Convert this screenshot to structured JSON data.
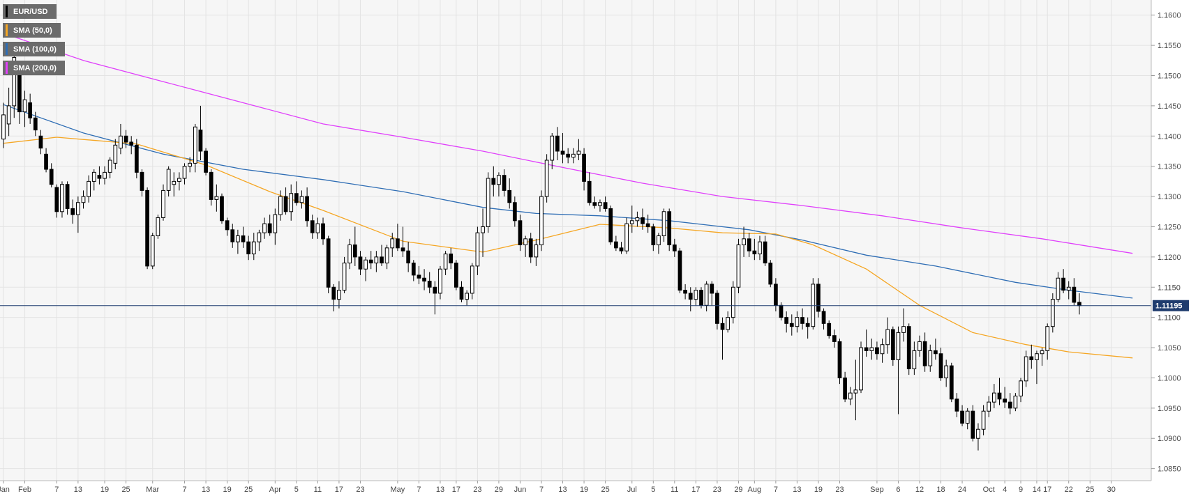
{
  "chart_data": {
    "type": "candlestick",
    "symbol": "EUR/USD",
    "indicators": [
      {
        "name": "EUR/USD",
        "color": "#000000"
      },
      {
        "name": "SMA (50,0)",
        "color": "#f5a623"
      },
      {
        "name": "SMA (100,0)",
        "color": "#2e6db4"
      },
      {
        "name": "SMA (200,0)",
        "color": "#e040fb"
      }
    ],
    "ylim": [
      1.083,
      1.1625
    ],
    "y_ticks": [
      "1.1600",
      "1.1550",
      "1.1500",
      "1.1450",
      "1.1400",
      "1.1350",
      "1.1300",
      "1.1250",
      "1.1200",
      "1.1150",
      "1.1100",
      "1.1050",
      "1.1000",
      "1.0950",
      "1.0900",
      "1.0850"
    ],
    "x_ticks": [
      "Jan",
      "Feb",
      "7",
      "13",
      "19",
      "25",
      "Mar",
      "7",
      "13",
      "19",
      "25",
      "Apr",
      "5",
      "11",
      "17",
      "23",
      "May",
      "7",
      "13",
      "17",
      "23",
      "29",
      "Jun",
      "7",
      "13",
      "19",
      "25",
      "Jul",
      "5",
      "11",
      "17",
      "23",
      "29",
      "Aug",
      "7",
      "13",
      "19",
      "23",
      "Sep",
      "6",
      "12",
      "18",
      "24",
      "Oct",
      "4",
      "9",
      "14",
      "17",
      "22",
      "25",
      "30"
    ],
    "last_price": "1.11195",
    "last_price_value": 1.11195,
    "ohlc": [
      [
        1.1395,
        1.1455,
        1.138,
        1.1435
      ],
      [
        1.142,
        1.148,
        1.14,
        1.145
      ],
      [
        1.145,
        1.155,
        1.143,
        1.153
      ],
      [
        1.15,
        1.151,
        1.142,
        1.144
      ],
      [
        1.144,
        1.1475,
        1.1415,
        1.146
      ],
      [
        1.1455,
        1.147,
        1.142,
        1.143
      ],
      [
        1.143,
        1.144,
        1.14,
        1.141
      ],
      [
        1.14,
        1.141,
        1.137,
        1.138
      ],
      [
        1.137,
        1.138,
        1.134,
        1.1345
      ],
      [
        1.1345,
        1.1355,
        1.1315,
        1.132
      ],
      [
        1.1315,
        1.132,
        1.1265,
        1.1275
      ],
      [
        1.1275,
        1.1325,
        1.1265,
        1.132
      ],
      [
        1.132,
        1.1325,
        1.127,
        1.128
      ],
      [
        1.128,
        1.1295,
        1.1255,
        1.127
      ],
      [
        1.127,
        1.13,
        1.124,
        1.129
      ],
      [
        1.129,
        1.131,
        1.128,
        1.13
      ],
      [
        1.13,
        1.1335,
        1.129,
        1.1325
      ],
      [
        1.1325,
        1.1345,
        1.131,
        1.134
      ],
      [
        1.1335,
        1.135,
        1.132,
        1.133
      ],
      [
        1.133,
        1.135,
        1.132,
        1.134
      ],
      [
        1.134,
        1.1365,
        1.133,
        1.136
      ],
      [
        1.1355,
        1.1395,
        1.1345,
        1.1385
      ],
      [
        1.138,
        1.142,
        1.137,
        1.14
      ],
      [
        1.14,
        1.141,
        1.138,
        1.139
      ],
      [
        1.139,
        1.14,
        1.137,
        1.1385
      ],
      [
        1.1385,
        1.1395,
        1.133,
        1.134
      ],
      [
        1.134,
        1.1345,
        1.13,
        1.131
      ],
      [
        1.131,
        1.1315,
        1.118,
        1.1185
      ],
      [
        1.1185,
        1.124,
        1.118,
        1.1235
      ],
      [
        1.1235,
        1.127,
        1.123,
        1.1265
      ],
      [
        1.1265,
        1.132,
        1.126,
        1.131
      ],
      [
        1.131,
        1.135,
        1.13,
        1.1345
      ],
      [
        1.132,
        1.134,
        1.13,
        1.1325
      ],
      [
        1.1325,
        1.134,
        1.131,
        1.133
      ],
      [
        1.133,
        1.1355,
        1.132,
        1.135
      ],
      [
        1.135,
        1.1365,
        1.134,
        1.1355
      ],
      [
        1.1355,
        1.142,
        1.134,
        1.1415
      ],
      [
        1.141,
        1.145,
        1.136,
        1.1375
      ],
      [
        1.1375,
        1.138,
        1.1335,
        1.134
      ],
      [
        1.134,
        1.1345,
        1.1285,
        1.1295
      ],
      [
        1.1295,
        1.132,
        1.1275,
        1.13
      ],
      [
        1.13,
        1.1305,
        1.1255,
        1.126
      ],
      [
        1.126,
        1.1265,
        1.1235,
        1.1245
      ],
      [
        1.1245,
        1.1255,
        1.1215,
        1.1225
      ],
      [
        1.1225,
        1.1245,
        1.1205,
        1.1235
      ],
      [
        1.1235,
        1.125,
        1.1215,
        1.1225
      ],
      [
        1.1225,
        1.1235,
        1.1195,
        1.1205
      ],
      [
        1.1205,
        1.124,
        1.1195,
        1.1225
      ],
      [
        1.1225,
        1.1245,
        1.121,
        1.124
      ],
      [
        1.124,
        1.1265,
        1.123,
        1.1255
      ],
      [
        1.1255,
        1.127,
        1.1235,
        1.124
      ],
      [
        1.124,
        1.128,
        1.122,
        1.127
      ],
      [
        1.127,
        1.131,
        1.126,
        1.13
      ],
      [
        1.13,
        1.1315,
        1.127,
        1.1275
      ],
      [
        1.1275,
        1.132,
        1.126,
        1.1305
      ],
      [
        1.1305,
        1.1325,
        1.1285,
        1.129
      ],
      [
        1.129,
        1.131,
        1.128,
        1.13
      ],
      [
        1.13,
        1.1315,
        1.125,
        1.126
      ],
      [
        1.126,
        1.127,
        1.123,
        1.124
      ],
      [
        1.124,
        1.1265,
        1.123,
        1.1255
      ],
      [
        1.1255,
        1.1265,
        1.122,
        1.123
      ],
      [
        1.123,
        1.1235,
        1.114,
        1.115
      ],
      [
        1.115,
        1.1155,
        1.111,
        1.113
      ],
      [
        1.113,
        1.116,
        1.1115,
        1.1145
      ],
      [
        1.1145,
        1.12,
        1.114,
        1.119
      ],
      [
        1.119,
        1.123,
        1.118,
        1.122
      ],
      [
        1.122,
        1.125,
        1.1185,
        1.12
      ],
      [
        1.12,
        1.121,
        1.117,
        1.118
      ],
      [
        1.118,
        1.12,
        1.116,
        1.1195
      ],
      [
        1.1195,
        1.121,
        1.118,
        1.119
      ],
      [
        1.119,
        1.121,
        1.1175,
        1.12
      ],
      [
        1.12,
        1.122,
        1.1185,
        1.119
      ],
      [
        1.119,
        1.122,
        1.118,
        1.1215
      ],
      [
        1.1215,
        1.124,
        1.12,
        1.123
      ],
      [
        1.123,
        1.1255,
        1.121,
        1.1215
      ],
      [
        1.1215,
        1.125,
        1.12,
        1.121
      ],
      [
        1.121,
        1.1225,
        1.1175,
        1.119
      ],
      [
        1.119,
        1.1195,
        1.116,
        1.117
      ],
      [
        1.117,
        1.1185,
        1.1155,
        1.1165
      ],
      [
        1.1165,
        1.118,
        1.1145,
        1.116
      ],
      [
        1.116,
        1.1175,
        1.114,
        1.115
      ],
      [
        1.115,
        1.116,
        1.1105,
        1.114
      ],
      [
        1.114,
        1.1185,
        1.113,
        1.118
      ],
      [
        1.118,
        1.121,
        1.117,
        1.1205
      ],
      [
        1.1205,
        1.1215,
        1.118,
        1.119
      ],
      [
        1.119,
        1.1195,
        1.1145,
        1.115
      ],
      [
        1.115,
        1.116,
        1.1125,
        1.113
      ],
      [
        1.113,
        1.1145,
        1.112,
        1.114
      ],
      [
        1.114,
        1.119,
        1.113,
        1.1185
      ],
      [
        1.1185,
        1.125,
        1.117,
        1.124
      ],
      [
        1.124,
        1.128,
        1.12,
        1.125
      ],
      [
        1.125,
        1.134,
        1.124,
        1.133
      ],
      [
        1.133,
        1.135,
        1.13,
        1.132
      ],
      [
        1.132,
        1.134,
        1.13,
        1.1335
      ],
      [
        1.1335,
        1.1345,
        1.13,
        1.131
      ],
      [
        1.131,
        1.133,
        1.128,
        1.129
      ],
      [
        1.129,
        1.13,
        1.125,
        1.126
      ],
      [
        1.126,
        1.127,
        1.121,
        1.122
      ],
      [
        1.122,
        1.1235,
        1.12,
        1.123
      ],
      [
        1.123,
        1.124,
        1.119,
        1.12
      ],
      [
        1.12,
        1.123,
        1.1185,
        1.122
      ],
      [
        1.122,
        1.131,
        1.121,
        1.13
      ],
      [
        1.13,
        1.137,
        1.129,
        1.136
      ],
      [
        1.136,
        1.1405,
        1.1345,
        1.14
      ],
      [
        1.14,
        1.1415,
        1.136,
        1.1375
      ],
      [
        1.1375,
        1.1405,
        1.1355,
        1.137
      ],
      [
        1.137,
        1.138,
        1.1355,
        1.1365
      ],
      [
        1.1365,
        1.138,
        1.1355,
        1.137
      ],
      [
        1.137,
        1.1395,
        1.136,
        1.1375
      ],
      [
        1.137,
        1.138,
        1.131,
        1.1325
      ],
      [
        1.1325,
        1.134,
        1.1285,
        1.129
      ],
      [
        1.129,
        1.13,
        1.128,
        1.1285
      ],
      [
        1.1285,
        1.1295,
        1.1275,
        1.129
      ],
      [
        1.129,
        1.13,
        1.1275,
        1.128
      ],
      [
        1.128,
        1.1285,
        1.122,
        1.1225
      ],
      [
        1.1225,
        1.1235,
        1.121,
        1.1215
      ],
      [
        1.1215,
        1.1225,
        1.1205,
        1.121
      ],
      [
        1.121,
        1.1265,
        1.1205,
        1.1255
      ],
      [
        1.1255,
        1.1285,
        1.124,
        1.126
      ],
      [
        1.126,
        1.1275,
        1.125,
        1.1265
      ],
      [
        1.1265,
        1.128,
        1.1245,
        1.1255
      ],
      [
        1.1255,
        1.127,
        1.124,
        1.125
      ],
      [
        1.125,
        1.1255,
        1.121,
        1.122
      ],
      [
        1.122,
        1.124,
        1.1205,
        1.1235
      ],
      [
        1.1235,
        1.128,
        1.1225,
        1.1275
      ],
      [
        1.1275,
        1.128,
        1.121,
        1.122
      ],
      [
        1.122,
        1.123,
        1.12,
        1.121
      ],
      [
        1.121,
        1.1215,
        1.114,
        1.1145
      ],
      [
        1.1145,
        1.1155,
        1.113,
        1.114
      ],
      [
        1.114,
        1.115,
        1.111,
        1.113
      ],
      [
        1.113,
        1.115,
        1.112,
        1.1145
      ],
      [
        1.1145,
        1.115,
        1.1115,
        1.112
      ],
      [
        1.112,
        1.116,
        1.111,
        1.1155
      ],
      [
        1.1155,
        1.116,
        1.112,
        1.114
      ],
      [
        1.114,
        1.1145,
        1.108,
        1.109
      ],
      [
        1.109,
        1.11,
        1.103,
        1.108
      ],
      [
        1.108,
        1.111,
        1.1075,
        1.11
      ],
      [
        1.11,
        1.116,
        1.109,
        1.115
      ],
      [
        1.115,
        1.123,
        1.114,
        1.122
      ],
      [
        1.122,
        1.125,
        1.12,
        1.123
      ],
      [
        1.123,
        1.124,
        1.12,
        1.121
      ],
      [
        1.121,
        1.123,
        1.1195,
        1.1205
      ],
      [
        1.1205,
        1.1235,
        1.1195,
        1.1225
      ],
      [
        1.1225,
        1.1235,
        1.1185,
        1.119
      ],
      [
        1.119,
        1.1195,
        1.115,
        1.1155
      ],
      [
        1.1155,
        1.1165,
        1.111,
        1.112
      ],
      [
        1.112,
        1.1125,
        1.1095,
        1.11
      ],
      [
        1.11,
        1.111,
        1.1075,
        1.109
      ],
      [
        1.109,
        1.1105,
        1.107,
        1.1085
      ],
      [
        1.1085,
        1.111,
        1.1075,
        1.11
      ],
      [
        1.11,
        1.1115,
        1.108,
        1.109
      ],
      [
        1.109,
        1.11,
        1.1065,
        1.1085
      ],
      [
        1.1085,
        1.1165,
        1.108,
        1.1155
      ],
      [
        1.1155,
        1.1165,
        1.11,
        1.111
      ],
      [
        1.111,
        1.1115,
        1.108,
        1.109
      ],
      [
        1.109,
        1.1095,
        1.1065,
        1.107
      ],
      [
        1.107,
        1.108,
        1.105,
        1.106
      ],
      [
        1.106,
        1.1065,
        1.099,
        1.1
      ],
      [
        1.1,
        1.101,
        1.096,
        1.0965
      ],
      [
        1.0965,
        1.0985,
        1.0955,
        1.0975
      ],
      [
        1.0975,
        1.103,
        1.093,
        1.098
      ],
      [
        1.098,
        1.106,
        1.0975,
        1.105
      ],
      [
        1.105,
        1.108,
        1.1035,
        1.1045
      ],
      [
        1.1045,
        1.1065,
        1.103,
        1.105
      ],
      [
        1.105,
        1.106,
        1.103,
        1.104
      ],
      [
        1.104,
        1.1065,
        1.1025,
        1.1055
      ],
      [
        1.1055,
        1.11,
        1.104,
        1.108
      ],
      [
        1.108,
        1.1085,
        1.102,
        1.103
      ],
      [
        1.103,
        1.1085,
        1.094,
        1.1075
      ],
      [
        1.1075,
        1.1115,
        1.106,
        1.1085
      ],
      [
        1.1085,
        1.109,
        1.1005,
        1.1015
      ],
      [
        1.1015,
        1.106,
        1.1005,
        1.1045
      ],
      [
        1.1045,
        1.107,
        1.1035,
        1.106
      ],
      [
        1.106,
        1.1075,
        1.101,
        1.102
      ],
      [
        1.102,
        1.1055,
        1.101,
        1.1045
      ],
      [
        1.1045,
        1.1065,
        1.103,
        1.104
      ],
      [
        1.104,
        1.105,
        1.0995,
        1.1
      ],
      [
        1.1,
        1.103,
        1.0985,
        1.102
      ],
      [
        1.102,
        1.1025,
        1.096,
        1.0965
      ],
      [
        1.0965,
        1.0975,
        1.0935,
        1.0945
      ],
      [
        1.0945,
        1.0955,
        1.092,
        1.0925
      ],
      [
        1.0925,
        1.095,
        1.0915,
        1.0945
      ],
      [
        1.0945,
        1.0955,
        1.0895,
        1.09
      ],
      [
        1.09,
        1.0925,
        1.088,
        1.0915
      ],
      [
        1.0915,
        1.0955,
        1.0905,
        1.0945
      ],
      [
        1.0945,
        1.097,
        1.0935,
        1.096
      ],
      [
        1.096,
        1.099,
        1.095,
        1.0975
      ],
      [
        1.0975,
        1.1,
        1.0955,
        1.0965
      ],
      [
        1.0965,
        1.0985,
        1.095,
        1.096
      ],
      [
        1.096,
        1.0975,
        1.094,
        1.095
      ],
      [
        1.095,
        1.0975,
        1.0945,
        1.097
      ],
      [
        1.097,
        1.1,
        1.096,
        1.0995
      ],
      [
        1.0995,
        1.1045,
        1.0985,
        1.1035
      ],
      [
        1.1035,
        1.1055,
        1.1015,
        1.103
      ],
      [
        1.103,
        1.1045,
        1.099,
        1.104
      ],
      [
        1.104,
        1.105,
        1.102,
        1.1045
      ],
      [
        1.1045,
        1.109,
        1.103,
        1.1085
      ],
      [
        1.1085,
        1.114,
        1.1075,
        1.113
      ],
      [
        1.113,
        1.1175,
        1.1125,
        1.1165
      ],
      [
        1.1165,
        1.118,
        1.114,
        1.1145
      ],
      [
        1.1145,
        1.116,
        1.113,
        1.115
      ],
      [
        1.115,
        1.1165,
        1.112,
        1.1125
      ],
      [
        1.1125,
        1.114,
        1.1105,
        1.11195
      ]
    ],
    "sma50": [
      [
        0,
        1.1388
      ],
      [
        10,
        1.1398
      ],
      [
        25,
        1.1387
      ],
      [
        38,
        1.1352
      ],
      [
        50,
        1.1308
      ],
      [
        60,
        1.1277
      ],
      [
        75,
        1.1226
      ],
      [
        90,
        1.1208
      ],
      [
        100,
        1.1228
      ],
      [
        112,
        1.1254
      ],
      [
        125,
        1.1248
      ],
      [
        135,
        1.124
      ],
      [
        145,
        1.1238
      ],
      [
        152,
        1.122
      ],
      [
        162,
        1.118
      ],
      [
        172,
        1.112
      ],
      [
        182,
        1.1075
      ],
      [
        192,
        1.1055
      ],
      [
        200,
        1.1043
      ],
      [
        212,
        1.1033
      ]
    ],
    "sma100": [
      [
        0,
        1.1452
      ],
      [
        15,
        1.1405
      ],
      [
        30,
        1.137
      ],
      [
        45,
        1.1345
      ],
      [
        60,
        1.1328
      ],
      [
        75,
        1.1308
      ],
      [
        90,
        1.1282
      ],
      [
        100,
        1.1272
      ],
      [
        112,
        1.1268
      ],
      [
        125,
        1.126
      ],
      [
        140,
        1.1245
      ],
      [
        150,
        1.1228
      ],
      [
        162,
        1.1203
      ],
      [
        175,
        1.1185
      ],
      [
        190,
        1.1158
      ],
      [
        200,
        1.1145
      ],
      [
        212,
        1.1132
      ]
    ],
    "sma200": [
      [
        0,
        1.157
      ],
      [
        15,
        1.1525
      ],
      [
        30,
        1.149
      ],
      [
        45,
        1.1455
      ],
      [
        60,
        1.142
      ],
      [
        75,
        1.1398
      ],
      [
        90,
        1.1375
      ],
      [
        105,
        1.1348
      ],
      [
        120,
        1.1322
      ],
      [
        135,
        1.13
      ],
      [
        150,
        1.1285
      ],
      [
        165,
        1.1268
      ],
      [
        180,
        1.1248
      ],
      [
        195,
        1.123
      ],
      [
        212,
        1.1206
      ]
    ]
  }
}
